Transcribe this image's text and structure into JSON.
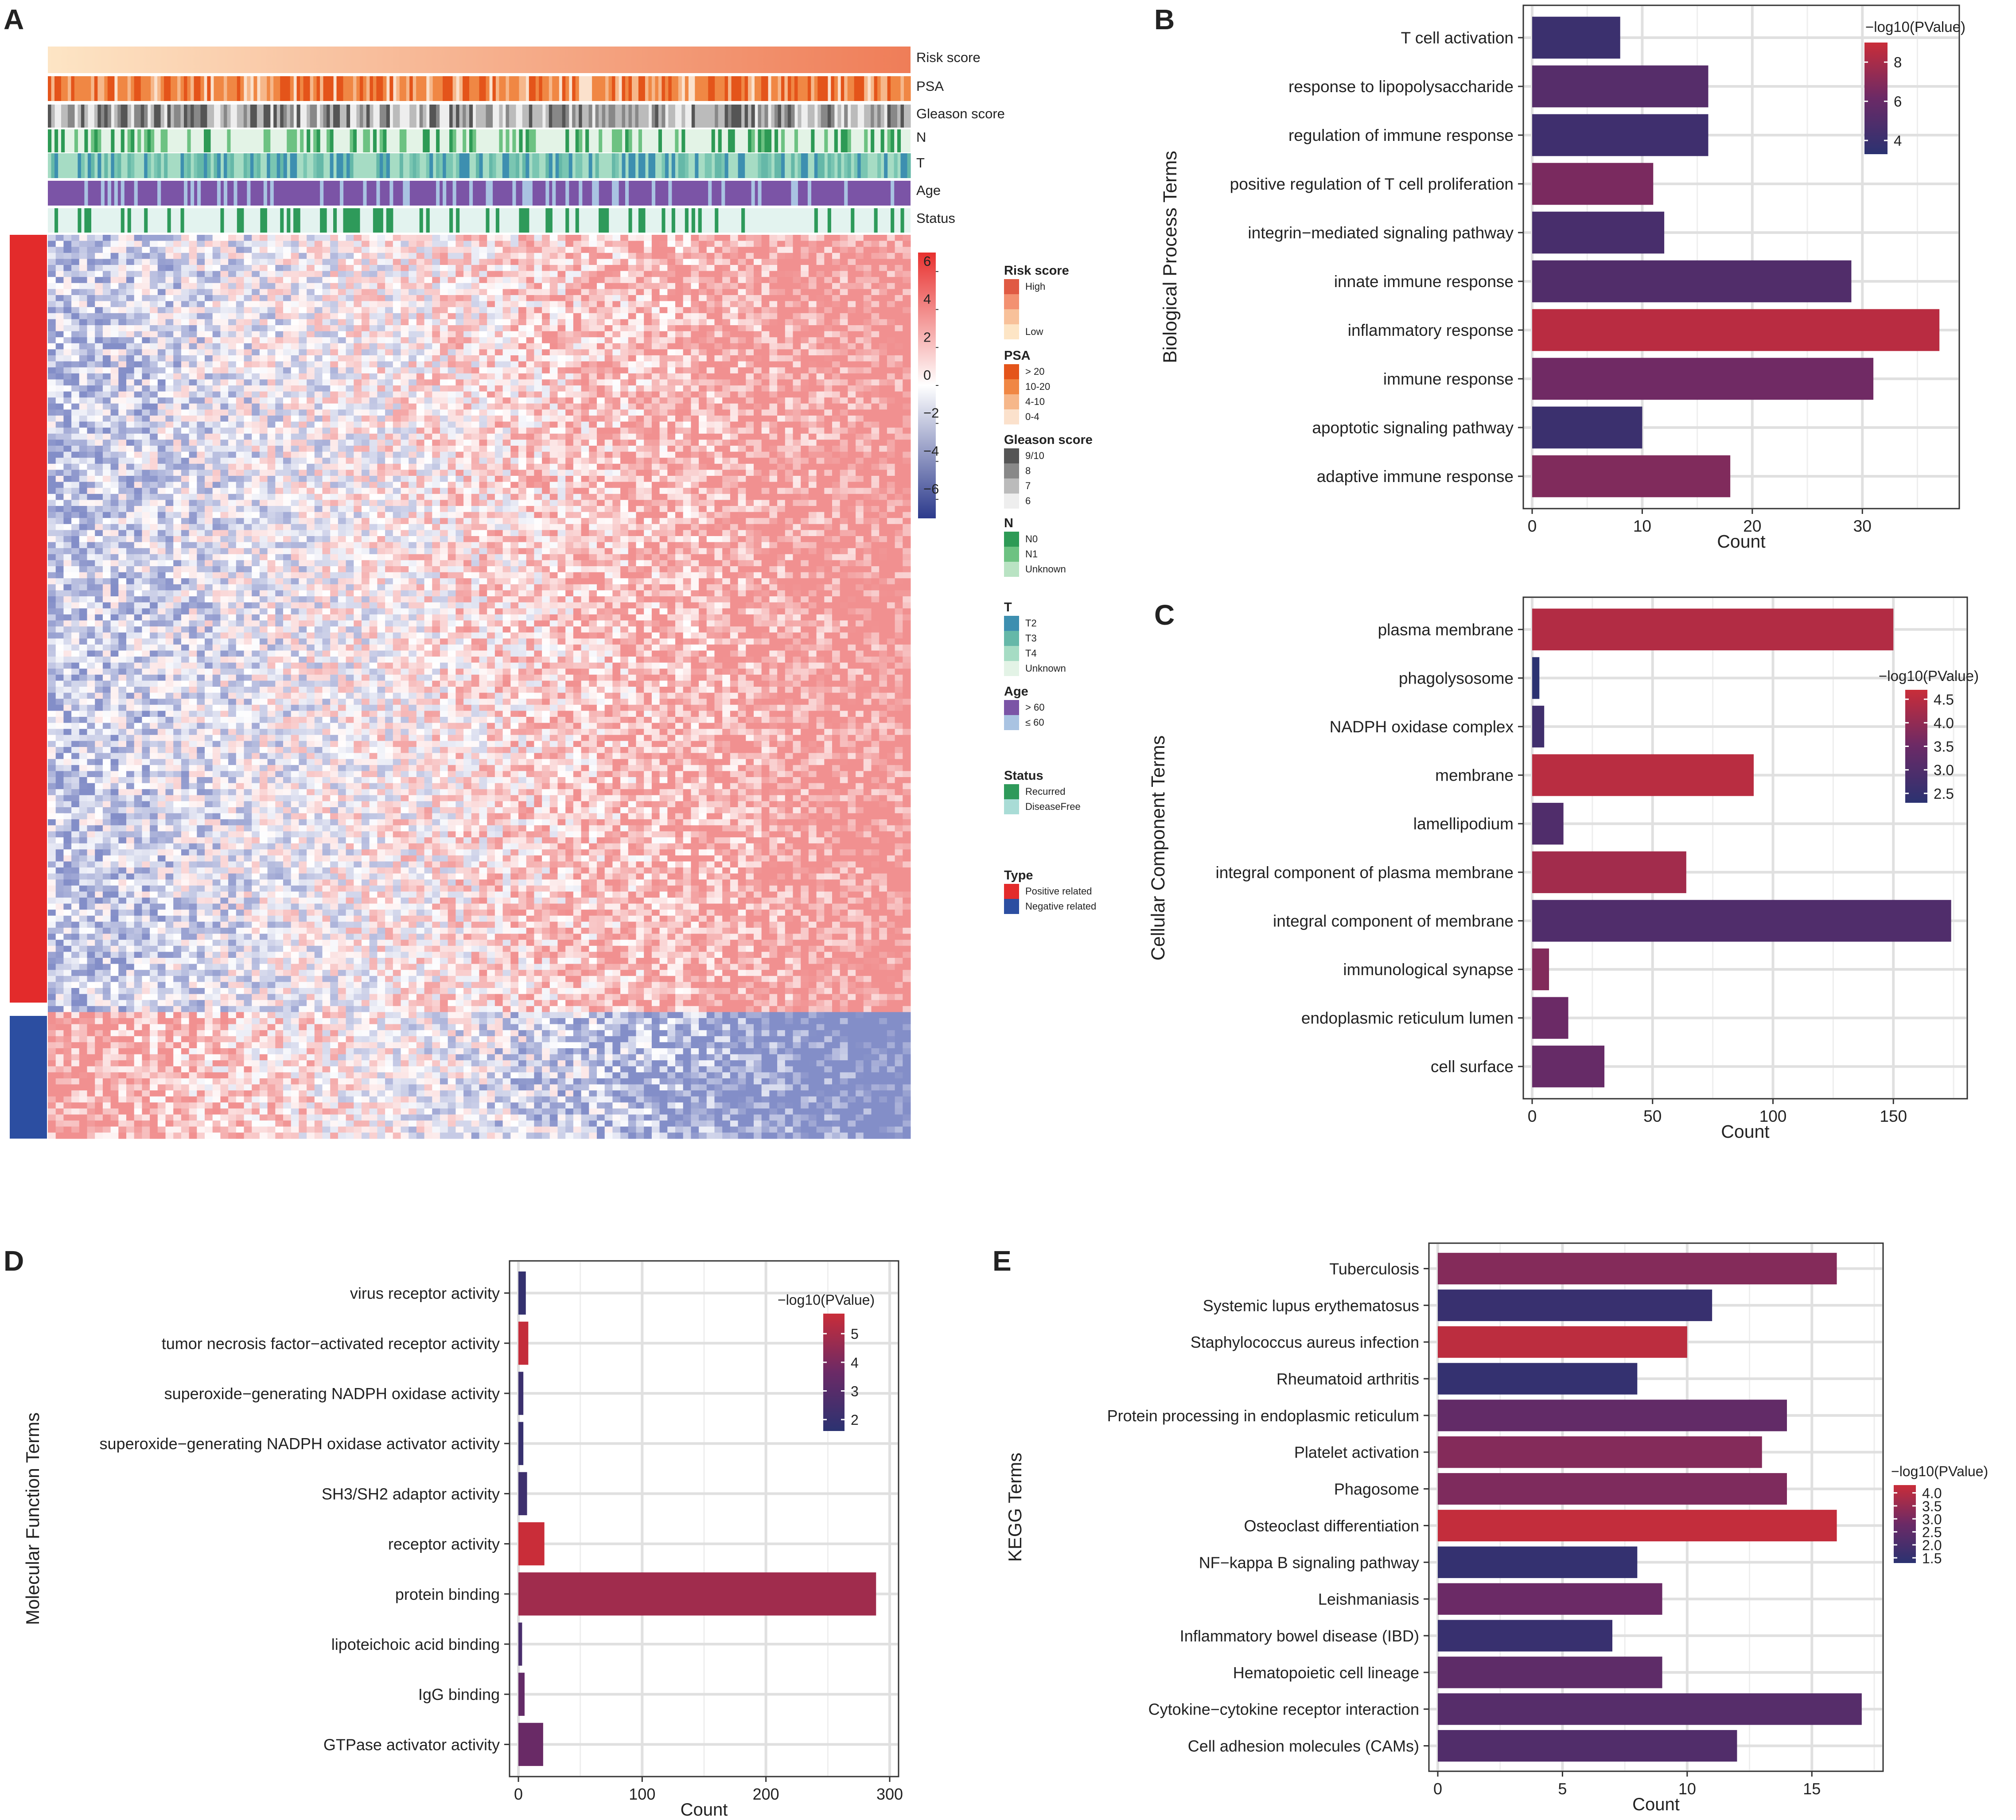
{
  "panel_letters": {
    "a": "A",
    "b": "B",
    "c": "C",
    "d": "D",
    "e": "E"
  },
  "chart_data": [
    {
      "id": "A",
      "type": "heatmap",
      "annotation_tracks": [
        "Risk score",
        "PSA",
        "Gleason score",
        "N",
        "T",
        "Age",
        "Status"
      ],
      "colorbar": {
        "ticks": [
          6,
          4,
          2,
          0,
          -2,
          -4,
          -6
        ],
        "range": [
          -7,
          7
        ],
        "low_color": "#2c3a8c",
        "mid_color": "#ffffff",
        "high_color": "#e8312f"
      },
      "legend_groups": [
        {
          "title": "Risk score",
          "items": [
            {
              "label": "High",
              "color": "#e05a43"
            },
            {
              "label": "",
              "color": "#f39171"
            },
            {
              "label": "",
              "color": "#f8c19a"
            },
            {
              "label": "Low",
              "color": "#fde5c5"
            }
          ]
        },
        {
          "title": "PSA",
          "items": [
            {
              "label": "> 20",
              "color": "#e4541a"
            },
            {
              "label": "10-20",
              "color": "#f08744"
            },
            {
              "label": "4-10",
              "color": "#f6b78a"
            },
            {
              "label": "0-4",
              "color": "#fbe1cc"
            }
          ]
        },
        {
          "title": "Gleason score",
          "items": [
            {
              "label": "9/10",
              "color": "#555555"
            },
            {
              "label": "8",
              "color": "#888888"
            },
            {
              "label": "7",
              "color": "#bbbbbb"
            },
            {
              "label": "6",
              "color": "#eeeeee"
            }
          ]
        },
        {
          "title": "N",
          "items": [
            {
              "label": "N0",
              "color": "#2d9a55"
            },
            {
              "label": "N1",
              "color": "#6dc282"
            },
            {
              "label": "Unknown",
              "color": "#b9e3c3"
            }
          ]
        },
        {
          "title": "T",
          "items": [
            {
              "label": "T2",
              "color": "#3d8fb0"
            },
            {
              "label": "T3",
              "color": "#65b8a8"
            },
            {
              "label": "T4",
              "color": "#a6dcc4"
            },
            {
              "label": "Unknown",
              "color": "#e3f3e6"
            }
          ]
        },
        {
          "title": "Age",
          "items": [
            {
              "label": "> 60",
              "color": "#7b54a6"
            },
            {
              "label": "≤ 60",
              "color": "#a9c3e2"
            }
          ]
        },
        {
          "title": "Status",
          "items": [
            {
              "label": "Recurred",
              "color": "#2e9a5a"
            },
            {
              "label": "DiseaseFree",
              "color": "#a9dcd6"
            }
          ]
        },
        {
          "title": "Type",
          "items": [
            {
              "label": "Positive related",
              "color": "#e32b2b"
            },
            {
              "label": "Negative related",
              "color": "#2c4ea1"
            }
          ]
        }
      ]
    },
    {
      "id": "B",
      "type": "bar",
      "orientation": "horizontal",
      "categories": [
        "T cell activation",
        "response to lipopolysaccharide",
        "regulation of immune response",
        "positive regulation of T cell proliferation",
        "integrin−mediated signaling pathway",
        "innate immune response",
        "inflammatory response",
        "immune response",
        "apoptotic signaling pathway",
        "adaptive immune response"
      ],
      "values": [
        8,
        16,
        16,
        11,
        12,
        29,
        37,
        31,
        10,
        18
      ],
      "color_values": [
        4.0,
        5.2,
        4.2,
        6.6,
        4.6,
        5.0,
        8.5,
        6.3,
        4.0,
        6.8
      ],
      "xlabel": "Count",
      "ylabel": "Biological Process Terms",
      "xlim": [
        0,
        38
      ],
      "xticks": [
        0,
        10,
        20,
        30
      ],
      "color_legend": {
        "title": "−log10(PValue)",
        "range": [
          3.3,
          9.0
        ],
        "ticks": [
          8,
          6,
          4
        ],
        "low_color": "#2b3271",
        "high_color": "#c92d39"
      }
    },
    {
      "id": "C",
      "type": "bar",
      "orientation": "horizontal",
      "categories": [
        "plasma membrane",
        "phagolysosome",
        "NADPH oxidase complex",
        "membrane",
        "lamellipodium",
        "integral component of plasma membrane",
        "integral component of membrane",
        "immunological synapse",
        "endoplasmic reticulum lumen",
        "cell surface"
      ],
      "values": [
        150,
        3,
        5,
        92,
        13,
        64,
        174,
        7,
        15,
        30
      ],
      "color_values": [
        4.4,
        2.3,
        2.7,
        4.5,
        3.0,
        4.2,
        3.0,
        3.8,
        3.5,
        3.4
      ],
      "xlabel": "Count",
      "ylabel": "Cellular Component Terms",
      "xlim": [
        0,
        177
      ],
      "xticks": [
        0,
        50,
        100,
        150
      ],
      "color_legend": {
        "title": "−log10(PValue)",
        "range": [
          2.3,
          4.7
        ],
        "ticks": [
          4.5,
          4.0,
          3.5,
          3.0,
          2.5
        ],
        "low_color": "#2b3271",
        "high_color": "#c92d39"
      }
    },
    {
      "id": "D",
      "type": "bar",
      "orientation": "horizontal",
      "categories": [
        "virus receptor activity",
        "tumor necrosis factor−activated receptor activity",
        "superoxide−generating NADPH oxidase activity",
        "superoxide−generating NADPH oxidase activator activity",
        "SH3/SH2 adaptor activity",
        "receptor activity",
        "protein binding",
        "lipoteichoic acid binding",
        "IgG binding",
        "GTPase activator activity"
      ],
      "values": [
        6,
        8,
        4,
        4,
        7,
        21,
        289,
        3,
        5,
        20
      ],
      "color_values": [
        1.9,
        5.6,
        2.1,
        2.0,
        2.2,
        5.8,
        4.8,
        2.6,
        3.4,
        3.6
      ],
      "xlabel": "Count",
      "ylabel": "Molecular Function Terms",
      "xlim": [
        0,
        300
      ],
      "xticks": [
        0,
        100,
        200,
        300
      ],
      "color_legend": {
        "title": "−log10(PValue)",
        "range": [
          1.6,
          5.7
        ],
        "ticks": [
          5,
          4,
          3,
          2
        ],
        "low_color": "#2b3271",
        "high_color": "#c92d39"
      }
    },
    {
      "id": "E",
      "type": "bar",
      "orientation": "horizontal",
      "categories": [
        "Tuberculosis",
        "Systemic lupus erythematosus",
        "Staphylococcus aureus infection",
        "Rheumatoid arthritis",
        "Protein processing in endoplasmic reticulum",
        "Platelet activation",
        "Phagosome",
        "Osteoclast differentiation",
        "NF−kappa B signaling pathway",
        "Leishmaniasis",
        "Inflammatory bowel disease (IBD)",
        "Hematopoietic cell lineage",
        "Cytokine−cytokine receptor interaction",
        "Cell adhesion molecules (CAMs)"
      ],
      "values": [
        16,
        11,
        10,
        8,
        14,
        13,
        14,
        16,
        8,
        9,
        7,
        9,
        17,
        12
      ],
      "color_values": [
        3.2,
        1.6,
        4.1,
        1.5,
        2.6,
        3.2,
        3.1,
        4.2,
        1.5,
        2.8,
        1.6,
        2.5,
        2.3,
        2.2
      ],
      "xlabel": "Count",
      "ylabel": "KEGG Terms",
      "xlim": [
        0,
        17.5
      ],
      "xticks": [
        0,
        5,
        10,
        15
      ],
      "color_legend": {
        "title": "−log10(PValue)",
        "range": [
          1.3,
          4.3
        ],
        "ticks": [
          4.0,
          3.5,
          3.0,
          2.5,
          2.0,
          1.5
        ],
        "low_color": "#2b3271",
        "high_color": "#c92d39"
      }
    }
  ]
}
